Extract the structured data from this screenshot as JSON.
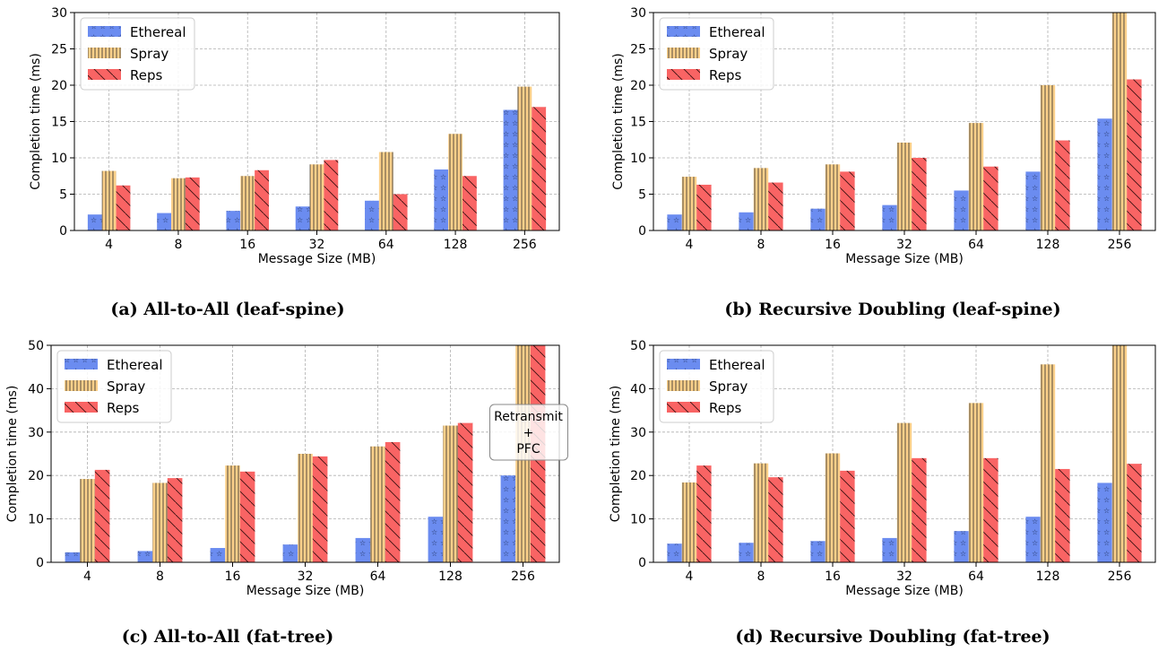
{
  "chart_data": [
    {
      "type": "bar",
      "caption": "(a) All-to-All (leaf-spine)",
      "xlabel": "Message Size (MB)",
      "ylabel": "Completion time (ms)",
      "categories": [
        "4",
        "8",
        "16",
        "32",
        "64",
        "128",
        "256"
      ],
      "ylim": [
        0,
        30
      ],
      "yticks": [
        0,
        5,
        10,
        15,
        20,
        25,
        30
      ],
      "grid": true,
      "legend": "top-left",
      "series": [
        {
          "name": "Ethereal",
          "values": [
            2.2,
            2.4,
            2.7,
            3.3,
            4.1,
            8.4,
            16.6
          ]
        },
        {
          "name": "Spray",
          "values": [
            8.2,
            7.2,
            7.5,
            9.1,
            10.8,
            13.3,
            19.8
          ]
        },
        {
          "name": "Reps",
          "values": [
            6.2,
            7.3,
            8.3,
            9.7,
            5.0,
            7.5,
            17.0
          ]
        }
      ]
    },
    {
      "type": "bar",
      "caption": "(b) Recursive Doubling (leaf-spine)",
      "xlabel": "Message Size (MB)",
      "ylabel": "Completion time (ms)",
      "categories": [
        "4",
        "8",
        "16",
        "32",
        "64",
        "128",
        "256"
      ],
      "ylim": [
        0,
        30
      ],
      "yticks": [
        0,
        5,
        10,
        15,
        20,
        25,
        30
      ],
      "grid": true,
      "legend": "top-left",
      "series": [
        {
          "name": "Ethereal",
          "values": [
            2.2,
            2.5,
            3.0,
            3.5,
            5.5,
            8.1,
            15.4
          ]
        },
        {
          "name": "Spray",
          "values": [
            7.4,
            8.6,
            9.1,
            12.1,
            14.8,
            20.0,
            30.0
          ]
        },
        {
          "name": "Reps",
          "values": [
            6.3,
            6.6,
            8.1,
            10.0,
            8.8,
            12.4,
            20.8
          ]
        }
      ]
    },
    {
      "type": "bar",
      "caption": "(c) All-to-All (fat-tree)",
      "xlabel": "Message Size (MB)",
      "ylabel": "Completion time (ms)",
      "categories": [
        "4",
        "8",
        "16",
        "32",
        "64",
        "128",
        "256"
      ],
      "ylim": [
        0,
        50
      ],
      "yticks": [
        0,
        10,
        20,
        30,
        40,
        50
      ],
      "grid": true,
      "legend": "top-left",
      "annotation": [
        "Retransmit",
        "+",
        "PFC"
      ],
      "series": [
        {
          "name": "Ethereal",
          "values": [
            2.3,
            2.6,
            3.3,
            4.1,
            5.6,
            10.5,
            20.0
          ]
        },
        {
          "name": "Spray",
          "values": [
            19.2,
            18.3,
            22.3,
            25.0,
            26.7,
            31.5,
            50.0
          ]
        },
        {
          "name": "Reps",
          "values": [
            21.3,
            19.4,
            20.9,
            24.4,
            27.7,
            32.1,
            50.0
          ]
        }
      ]
    },
    {
      "type": "bar",
      "caption": "(d) Recursive Doubling (fat-tree)",
      "xlabel": "Message Size (MB)",
      "ylabel": "Completion time (ms)",
      "categories": [
        "4",
        "8",
        "16",
        "32",
        "64",
        "128",
        "256"
      ],
      "ylim": [
        0,
        50
      ],
      "yticks": [
        0,
        10,
        20,
        30,
        40,
        50
      ],
      "grid": true,
      "legend": "top-left",
      "series": [
        {
          "name": "Ethereal",
          "values": [
            4.3,
            4.5,
            4.9,
            5.6,
            7.2,
            10.5,
            18.3
          ]
        },
        {
          "name": "Spray",
          "values": [
            18.4,
            22.8,
            25.1,
            32.1,
            36.7,
            45.6,
            50.0
          ]
        },
        {
          "name": "Reps",
          "values": [
            22.3,
            19.6,
            21.1,
            24.0,
            24.0,
            21.5,
            22.7
          ]
        }
      ]
    }
  ],
  "colors": {
    "ethereal": "#6b8cf0",
    "spray": "#fcd08a",
    "reps": "#f96464",
    "grid": "#b0b0b0"
  }
}
